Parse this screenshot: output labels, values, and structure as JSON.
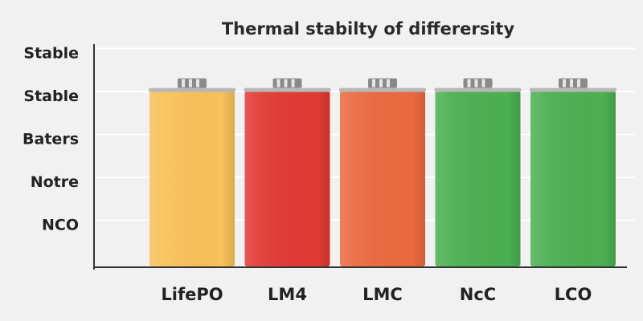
{
  "chart_data": {
    "type": "bar",
    "title": "Thermal stabilty of differersity",
    "xlabel": "",
    "ylabel": "",
    "categories": [
      "LifePO",
      "LM4",
      "LMC",
      "NcC",
      "LCO"
    ],
    "y_tick_labels": [
      "NCO",
      "Notre",
      "Baters",
      "Stable",
      "Stable"
    ],
    "values": [
      4.1,
      4.1,
      4.1,
      4.1,
      4.1
    ],
    "ylim": [
      0,
      5.2
    ],
    "colors": [
      "#f8c15a",
      "#e13a34",
      "#ea6a3f",
      "#4bb052",
      "#4bb052"
    ],
    "grid": true,
    "bar_style": "battery"
  }
}
